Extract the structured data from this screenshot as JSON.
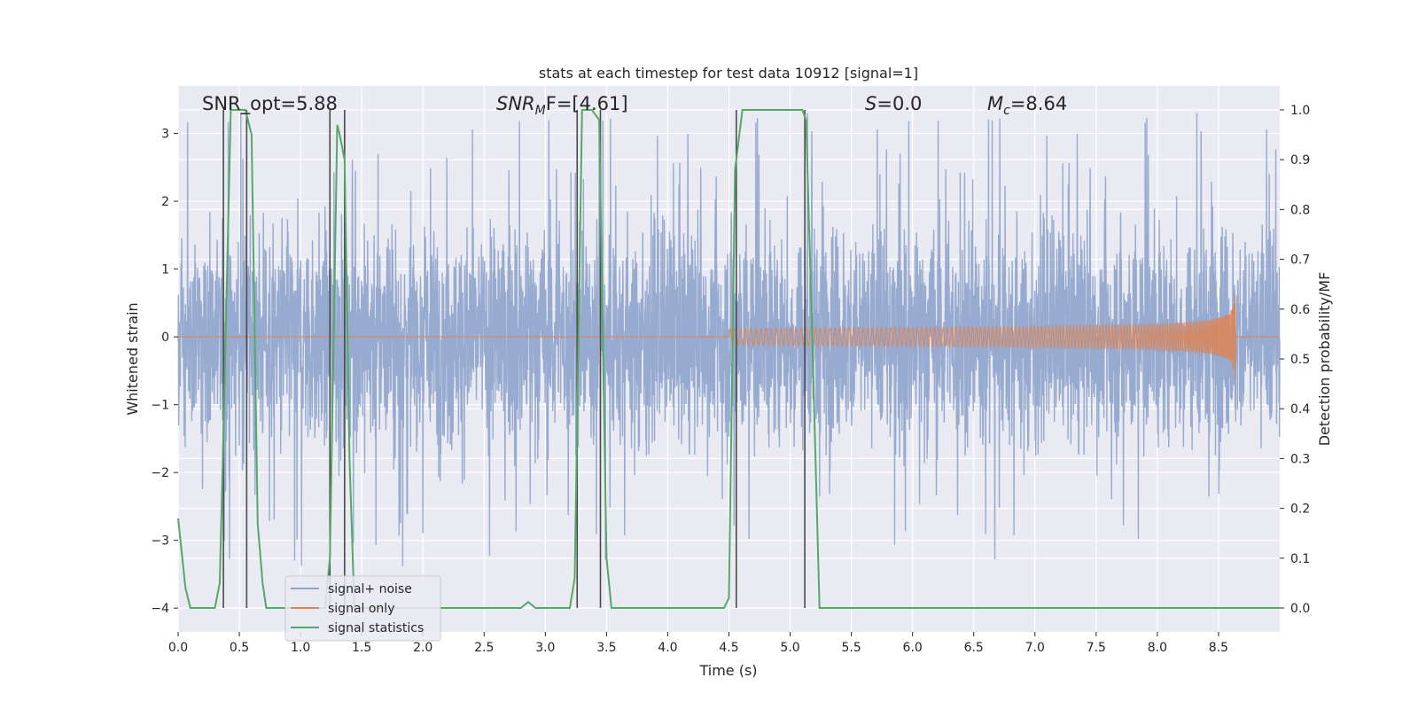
{
  "chart_data": {
    "type": "line",
    "title": "stats at each timestep for test data 10912 [signal=1]",
    "xlabel": "Time (s)",
    "ylabel": "Whitened strain",
    "y2label": "Detection probability/MF",
    "xlim": [
      0,
      9
    ],
    "ylim": [
      -4.35,
      3.7
    ],
    "y2lim": [
      -0.048,
      1.048
    ],
    "grid": true,
    "legend_position": "lower-left",
    "x_ticks": [
      0.0,
      0.5,
      1.0,
      1.5,
      2.0,
      2.5,
      3.0,
      3.5,
      4.0,
      4.5,
      5.0,
      5.5,
      6.0,
      6.5,
      7.0,
      7.5,
      8.0,
      8.5
    ],
    "x_tick_labels": [
      "0.0",
      "0.5",
      "1.0",
      "1.5",
      "2.0",
      "2.5",
      "3.0",
      "3.5",
      "4.0",
      "4.5",
      "5.0",
      "5.5",
      "6.0",
      "6.5",
      "7.0",
      "7.5",
      "8.0",
      "8.5"
    ],
    "y_ticks": [
      -4,
      -3,
      -2,
      -1,
      0,
      1,
      2,
      3
    ],
    "y_tick_labels": [
      "−4",
      "−3",
      "−2",
      "−1",
      "0",
      "1",
      "2",
      "3"
    ],
    "y2_ticks": [
      0.0,
      0.1,
      0.2,
      0.3,
      0.4,
      0.5,
      0.6,
      0.7,
      0.8,
      0.9,
      1.0
    ],
    "y2_tick_labels": [
      "0.0",
      "0.1",
      "0.2",
      "0.3",
      "0.4",
      "0.5",
      "0.6",
      "0.7",
      "0.8",
      "0.9",
      "1.0"
    ],
    "annotations": {
      "snr_opt": "SNR_opt=5.88",
      "snr_mf_base": "SNR",
      "snr_mf_sub": "M",
      "snr_mf_rest": "F=[4.61]",
      "s_base": "S",
      "s_rest": "=0.0",
      "mc_base": "M",
      "mc_sub": "c",
      "mc_rest": "=8.64"
    },
    "series": [
      {
        "name": "signal+ noise",
        "color": "#8ea3cb",
        "description_kind": "noise",
        "envelope_typical": 1.6,
        "envelope_peak": 3.0,
        "x_range": [
          0,
          9
        ]
      },
      {
        "name": "signal only",
        "color": "#dd8452",
        "description_kind": "chirp",
        "x_start": 4.5,
        "x_end": 8.64,
        "peak_amplitude": 0.7
      },
      {
        "name": "signal statistics",
        "color": "#55a868",
        "axis": "right",
        "x": [
          0.0,
          0.06,
          0.1,
          0.3,
          0.34,
          0.37,
          0.43,
          0.45,
          0.55,
          0.6,
          0.65,
          0.69,
          0.72,
          1.2,
          1.24,
          1.3,
          1.32,
          1.36,
          1.4,
          1.44,
          2.8,
          2.86,
          2.92,
          3.2,
          3.24,
          3.3,
          3.38,
          3.44,
          3.5,
          3.54,
          4.46,
          4.5,
          4.55,
          4.61,
          5.1,
          5.13,
          5.18,
          5.24,
          9.0
        ],
        "y": [
          0.18,
          0.04,
          0.0,
          0.0,
          0.05,
          0.35,
          1.0,
          1.0,
          1.0,
          0.95,
          0.17,
          0.05,
          0.0,
          0.0,
          0.1,
          0.97,
          0.95,
          0.9,
          0.3,
          0.0,
          0.0,
          0.012,
          0.0,
          0.0,
          0.06,
          1.0,
          1.0,
          0.98,
          0.1,
          0.0,
          0.0,
          0.02,
          0.88,
          1.0,
          1.0,
          0.98,
          0.55,
          0.0,
          0.0
        ]
      }
    ],
    "vertical_lines": [
      0.37,
      0.56,
      1.24,
      1.36,
      3.26,
      3.45,
      4.56,
      5.12
    ],
    "colors": {
      "plot_background": "#eaeaf2",
      "grid": "#ffffff",
      "vline": "#4a4a4a",
      "text": "#262626"
    }
  }
}
